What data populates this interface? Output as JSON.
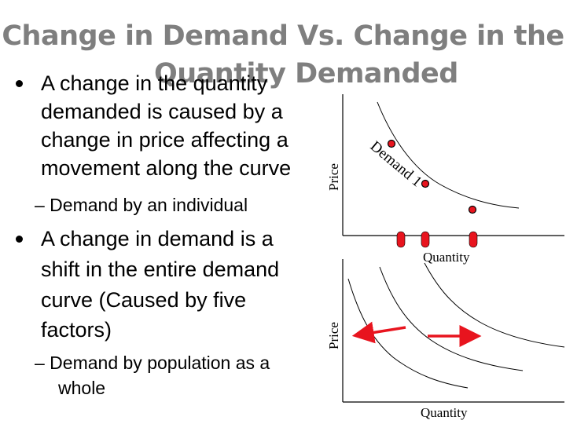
{
  "title": {
    "line1": "Change in Demand Vs. Change in the",
    "line2": "Quantity Demanded"
  },
  "bullet1": {
    "lines": [
      "A change in the quantity",
      "demanded is caused by a",
      "change in price affecting a",
      "movement along the curve"
    ],
    "sub": "– Demand by an individual"
  },
  "bullet2": {
    "lines": [
      "A change in demand is a",
      "shift in the entire demand",
      "curve (Caused by five",
      "factors)"
    ],
    "sub_lines": [
      "– Demand by population as a",
      "whole"
    ]
  },
  "graph_top": {
    "y_label": "Price",
    "x_label": "Quantity",
    "curve_label": "Demand 1"
  },
  "graph_bottom": {
    "y_label": "Price",
    "x_label": "Quantity"
  },
  "colors": {
    "title": "#7f7f7f",
    "marker": "#e8141e",
    "arrow": "#e8141e",
    "axis": "#000000"
  }
}
